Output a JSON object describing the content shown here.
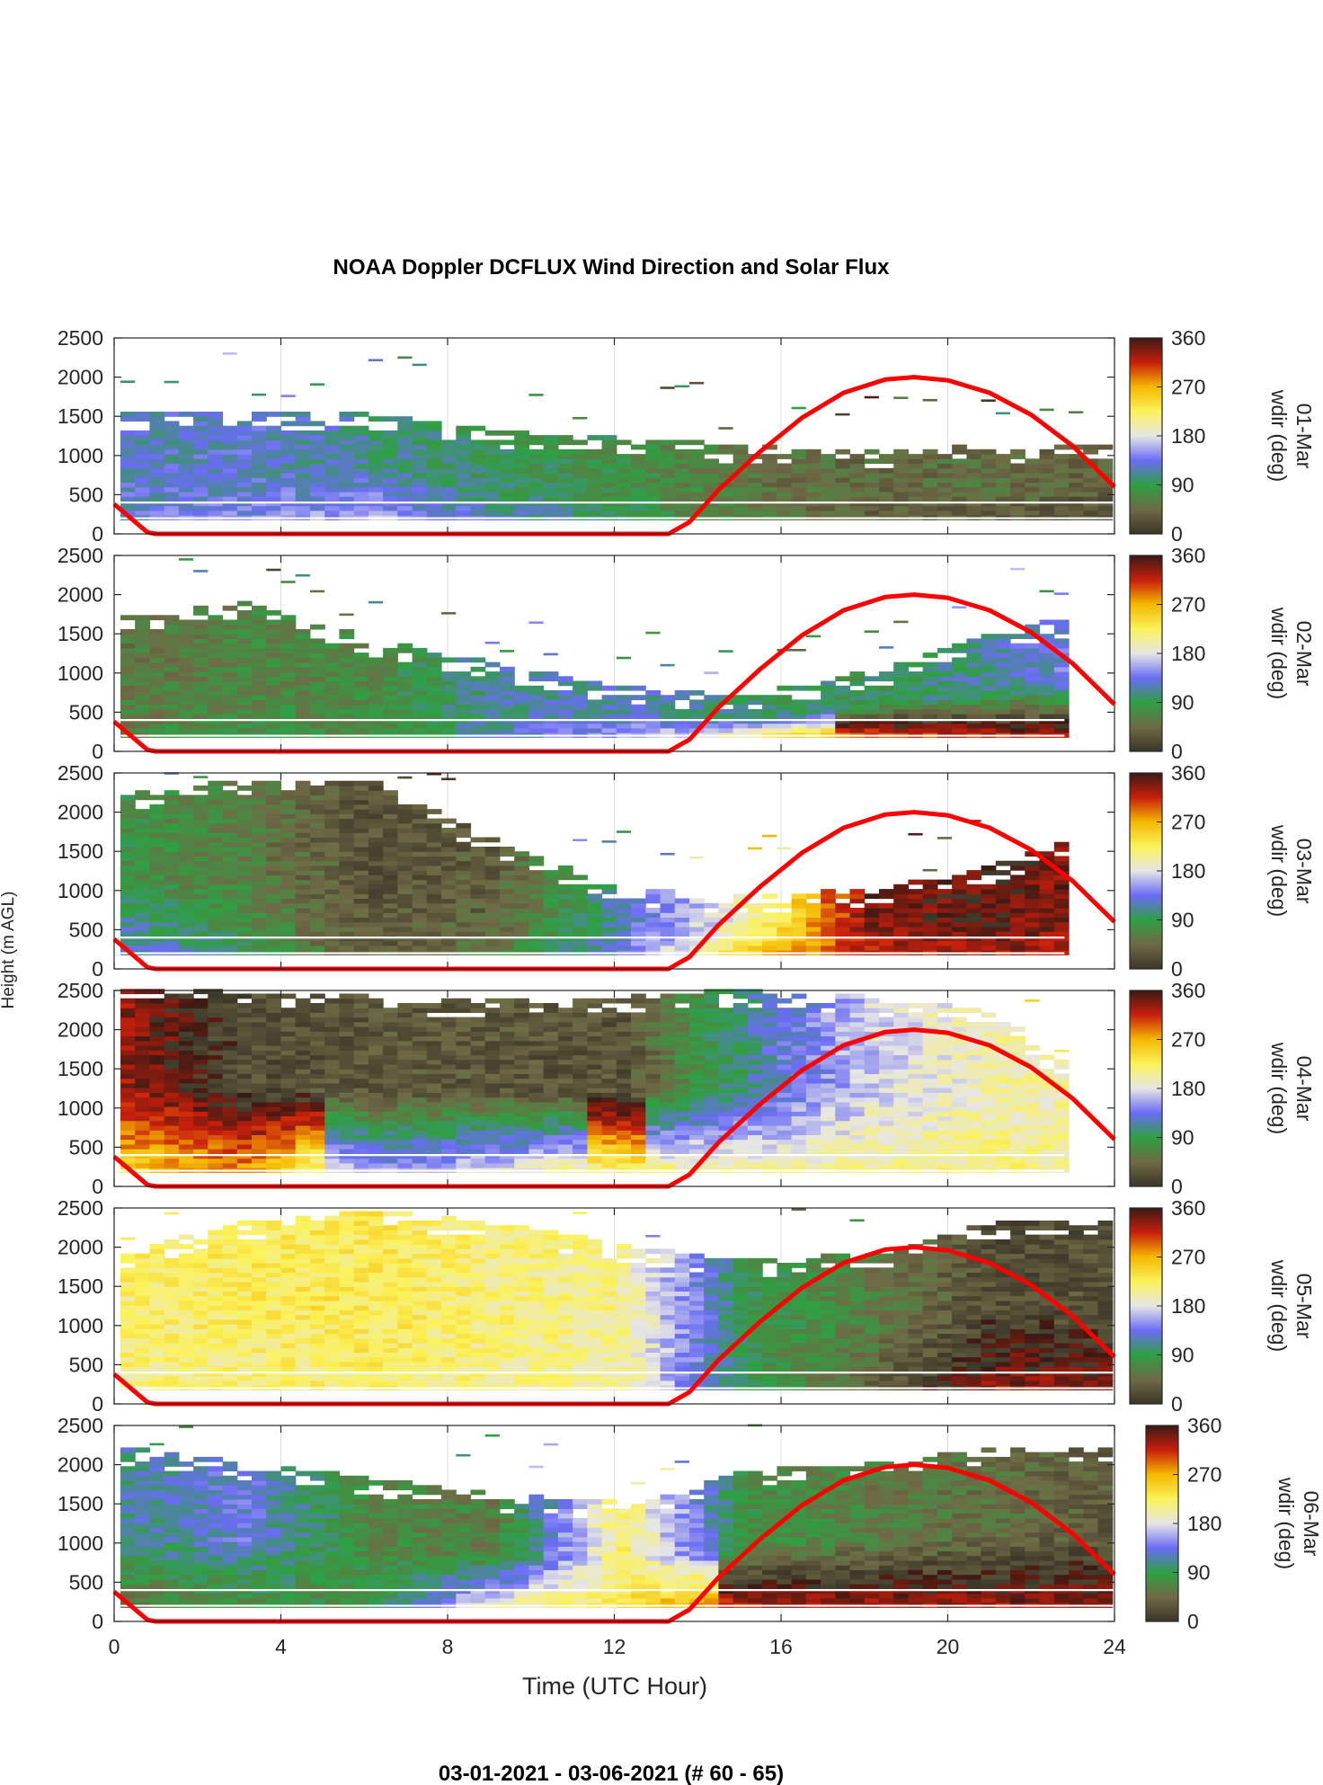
{
  "title": "NOAA Doppler DCFLUX Wind Direction and Solar Flux",
  "footer": "03-01-2021 - 03-06-2021   (# 60 - 65)",
  "colors": {
    "solar_flux_line": "#ff0000",
    "colormap": [
      "#3b3528",
      "#6f6a45",
      "#2ea043",
      "#6a6cf5",
      "#e6e6e6",
      "#fbf25a",
      "#f5b800",
      "#c81e0c",
      "#3a1a14"
    ]
  },
  "chart_data": {
    "type": "heatmap",
    "xlabel": "Time (UTC Hour)",
    "ylabel": "Height (m AGL)",
    "xlim": [
      0,
      24
    ],
    "ylim": [
      0,
      2500
    ],
    "xticks": [
      0,
      4,
      8,
      12,
      16,
      20,
      24
    ],
    "yticks": [
      0,
      500,
      1000,
      1500,
      2000,
      2500
    ],
    "colorbar": {
      "label": "wdir (deg)",
      "range": [
        0,
        360
      ],
      "ticks": [
        0,
        90,
        180,
        270,
        360
      ]
    },
    "panels": [
      {
        "day": "01-Mar",
        "colorbar_label": "wdir (deg)",
        "end_hour": 24.0,
        "top_m": [
          1500,
          1550,
          1500,
          1300,
          1200,
          1100,
          1050,
          1100,
          1100
        ],
        "low_dir": [
          130,
          140,
          160,
          120,
          90,
          60,
          40,
          30,
          20
        ],
        "mid_dir": [
          120,
          125,
          110,
          90,
          80,
          55,
          45,
          50,
          40
        ],
        "solar_flux_peak_hour": 19.2
      },
      {
        "day": "02-Mar",
        "colorbar_label": "wdir (deg)",
        "end_hour": 22.8,
        "top_m": [
          1700,
          1900,
          1400,
          1100,
          800,
          700,
          1000,
          1500,
          1800
        ],
        "low_dir": [
          60,
          80,
          70,
          120,
          150,
          200,
          300,
          320,
          330
        ],
        "mid_dir": [
          55,
          65,
          70,
          110,
          120,
          100,
          90,
          115,
          150
        ],
        "solar_flux_peak_hour": 19.2
      },
      {
        "day": "03-Mar",
        "colorbar_label": "wdir (deg)",
        "end_hour": 22.8,
        "top_m": [
          2200,
          2400,
          2400,
          1600,
          1000,
          900,
          1000,
          1300,
          1900
        ],
        "low_dir": [
          130,
          90,
          30,
          60,
          130,
          250,
          320,
          330,
          320
        ],
        "mid_dir": [
          80,
          60,
          25,
          35,
          120,
          200,
          340,
          350,
          330
        ],
        "solar_flux_peak_hour": 19.2
      },
      {
        "day": "04-Mar",
        "colorbar_label": "wdir (deg)",
        "end_hour": 22.8,
        "top_m": [
          2500,
          2500,
          2400,
          2350,
          2400,
          2500,
          2400,
          2200,
          1000
        ],
        "low_dir": [
          250,
          280,
          150,
          180,
          220,
          200,
          210,
          215,
          200
        ],
        "mid_dir": [
          330,
          20,
          30,
          30,
          25,
          110,
          170,
          200,
          205
        ],
        "solar_flux_peak_hour": 19.2
      },
      {
        "day": "05-Mar",
        "colorbar_label": "wdir (deg)",
        "end_hour": 24.0,
        "top_m": [
          1900,
          2300,
          2450,
          2300,
          2000,
          1800,
          1900,
          2300,
          2300
        ],
        "low_dir": [
          210,
          215,
          220,
          210,
          205,
          90,
          40,
          330,
          340
        ],
        "mid_dir": [
          220,
          225,
          230,
          215,
          210,
          90,
          60,
          20,
          25
        ],
        "solar_flux_peak_hour": 19.2
      },
      {
        "day": "06-Mar",
        "colorbar_label": "wdir (deg)",
        "end_hour": 24.0,
        "top_m": [
          2200,
          2000,
          1800,
          1600,
          1500,
          1900,
          2000,
          2200,
          2200
        ],
        "low_dir": [
          50,
          70,
          80,
          200,
          230,
          320,
          330,
          330,
          340
        ],
        "mid_dir": [
          110,
          130,
          70,
          60,
          220,
          80,
          60,
          50,
          30
        ],
        "solar_flux_peak_hour": 19.2
      }
    ],
    "solar_flux_curve": [
      [
        0,
        380
      ],
      [
        0.8,
        20
      ],
      [
        1.0,
        0
      ],
      [
        13.3,
        0
      ],
      [
        13.8,
        150
      ],
      [
        14.5,
        560
      ],
      [
        15.5,
        1050
      ],
      [
        16.5,
        1480
      ],
      [
        17.5,
        1800
      ],
      [
        18.5,
        1970
      ],
      [
        19.2,
        2000
      ],
      [
        20.0,
        1960
      ],
      [
        21.0,
        1800
      ],
      [
        22.0,
        1520
      ],
      [
        23.0,
        1120
      ],
      [
        24.0,
        600
      ]
    ]
  }
}
